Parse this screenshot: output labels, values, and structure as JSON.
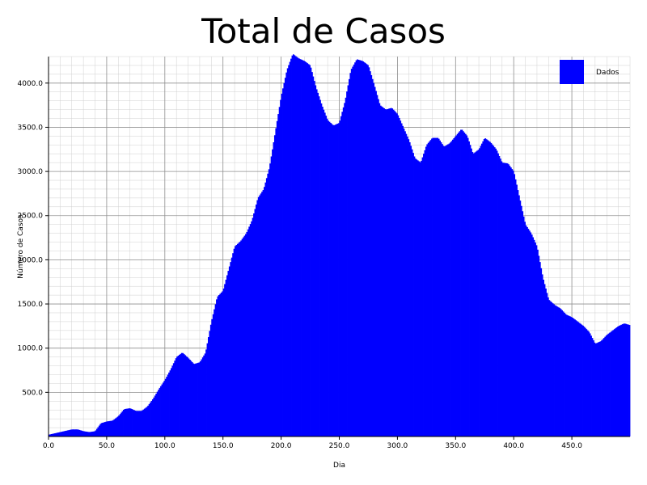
{
  "chart_data": {
    "type": "bar",
    "title": "Total de Casos",
    "xlabel": "Dia",
    "ylabel": "Número de Casos",
    "xlim": [
      0,
      500
    ],
    "ylim": [
      0,
      4300
    ],
    "x_ticks": [
      0,
      50,
      100,
      150,
      200,
      250,
      300,
      350,
      400,
      450
    ],
    "x_tick_labels": [
      "0.0",
      "50.0",
      "100.0",
      "150.0",
      "200.0",
      "250.0",
      "300.0",
      "350.0",
      "400.0",
      "450.0"
    ],
    "y_ticks": [
      500,
      1000,
      1500,
      2000,
      2500,
      3000,
      3500,
      4000
    ],
    "y_tick_labels": [
      "500.0",
      "1000.0",
      "1500.0",
      "2000.0",
      "2500.0",
      "3000.0",
      "3500.0",
      "4000.0"
    ],
    "grid": true,
    "legend": {
      "position": "top-right",
      "entries": [
        "Dados"
      ]
    },
    "color": "#0000ff",
    "series": [
      {
        "name": "Dados",
        "x": [
          0,
          10,
          20,
          25,
          30,
          35,
          40,
          45,
          50,
          55,
          60,
          65,
          70,
          75,
          80,
          85,
          90,
          95,
          100,
          105,
          110,
          115,
          120,
          125,
          130,
          135,
          140,
          145,
          150,
          155,
          160,
          165,
          170,
          175,
          180,
          185,
          190,
          195,
          200,
          205,
          210,
          215,
          220,
          225,
          230,
          235,
          240,
          245,
          250,
          255,
          260,
          265,
          270,
          275,
          280,
          285,
          290,
          295,
          300,
          305,
          310,
          315,
          320,
          325,
          330,
          335,
          340,
          345,
          350,
          355,
          360,
          365,
          370,
          375,
          380,
          385,
          390,
          395,
          400,
          405,
          410,
          415,
          420,
          425,
          430,
          435,
          440,
          445,
          450,
          455,
          460,
          465,
          470,
          475,
          480,
          485,
          490,
          495,
          500
        ],
        "values": [
          20,
          50,
          80,
          80,
          60,
          50,
          60,
          150,
          170,
          180,
          230,
          310,
          320,
          290,
          290,
          340,
          430,
          540,
          640,
          760,
          900,
          950,
          890,
          820,
          840,
          950,
          1300,
          1580,
          1650,
          1900,
          2150,
          2210,
          2300,
          2450,
          2700,
          2800,
          3050,
          3450,
          3850,
          4150,
          4330,
          4280,
          4250,
          4200,
          3950,
          3750,
          3580,
          3520,
          3550,
          3800,
          4150,
          4270,
          4250,
          4200,
          3980,
          3750,
          3700,
          3720,
          3650,
          3500,
          3350,
          3150,
          3100,
          3300,
          3380,
          3380,
          3280,
          3320,
          3400,
          3480,
          3400,
          3200,
          3250,
          3380,
          3330,
          3250,
          3100,
          3090,
          3000,
          2700,
          2400,
          2300,
          2150,
          1800,
          1550,
          1490,
          1450,
          1380,
          1350,
          1300,
          1250,
          1180,
          1050,
          1080,
          1150,
          1200,
          1250,
          1280,
          1260
        ]
      }
    ]
  }
}
